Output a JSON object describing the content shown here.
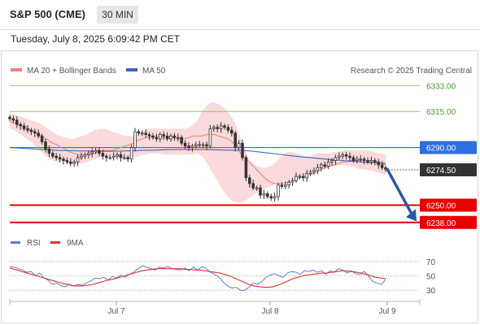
{
  "header": {
    "title": "S&P 500 (CME)",
    "interval": "30 MIN",
    "datetime": "Tuesday, July 8, 2025 6:09:42 PM CET"
  },
  "legend": {
    "ma20_label": "MA 20 + Bollinger Bands",
    "ma50_label": "MA 50",
    "attribution": "Research © 2025 Trading Central",
    "rsi_label": "RSI",
    "rsi_ma_label": "9MA"
  },
  "colors": {
    "ma20": "#f08080",
    "band": "#fadadb",
    "ma50": "#3b63b8",
    "up": "#ffffff",
    "down": "#333333",
    "green_level": "#8dc56a",
    "blue_level": "#2e6fe0",
    "red_level": "#e60000",
    "arrow": "#2b57a5",
    "rsi": "#5b7fd6",
    "rsi_ma": "#e03030"
  },
  "chart_data": [
    {
      "type": "candlestick",
      "title": "S&P 500 (CME)",
      "timeframe": "30 MIN",
      "x_labels": [
        "Jul 7",
        "Jul 8",
        "Jul 9"
      ],
      "ylim": [
        6230,
        6345
      ],
      "levels": [
        {
          "value": 6333.0,
          "label": "6333.00",
          "style": "green"
        },
        {
          "value": 6315.0,
          "label": "6315.00",
          "style": "green"
        },
        {
          "value": 6290.0,
          "label": "6290.00",
          "style": "blue"
        },
        {
          "value": 6250.0,
          "label": "6250.00",
          "style": "red"
        },
        {
          "value": 6238.0,
          "label": "6238.00",
          "style": "red"
        }
      ],
      "current_price": {
        "value": 6274.5,
        "label": "6274.50"
      },
      "forecast_arrow": {
        "from": 6275,
        "to": 6240,
        "direction": "down"
      },
      "closes": [
        6310,
        6309,
        6306,
        6305,
        6303,
        6302,
        6301,
        6300,
        6298,
        6294,
        6289,
        6286,
        6284,
        6283,
        6282,
        6281,
        6280,
        6279,
        6280,
        6283,
        6284,
        6285,
        6286,
        6287,
        6288,
        6286,
        6284,
        6283,
        6283,
        6284,
        6285,
        6283,
        6283,
        6282,
        6290,
        6301,
        6300,
        6300,
        6299,
        6298,
        6297,
        6296,
        6299,
        6298,
        6296,
        6298,
        6297,
        6297,
        6293,
        6291,
        6290,
        6291,
        6292,
        6292,
        6292,
        6291,
        6303,
        6304,
        6303,
        6305,
        6304,
        6302,
        6300,
        6290,
        6293,
        6283,
        6269,
        6265,
        6262,
        6262,
        6257,
        6258,
        6256,
        6255,
        6256,
        6264,
        6263,
        6264,
        6266,
        6267,
        6270,
        6270,
        6269,
        6272,
        6273,
        6274,
        6276,
        6278,
        6277,
        6280,
        6281,
        6283,
        6284,
        6285,
        6284,
        6283,
        6281,
        6282,
        6282,
        6281,
        6280,
        6281,
        6280,
        6278,
        6276,
        6275
      ],
      "ma20": [
        6308,
        6307,
        6306,
        6305,
        6304,
        6302,
        6301,
        6299,
        6297,
        6295,
        6293,
        6292,
        6290,
        6289,
        6287,
        6286,
        6285,
        6285,
        6285,
        6285,
        6286,
        6287,
        6288,
        6288,
        6288,
        6289,
        6290,
        6291,
        6292,
        6293,
        6295,
        6296,
        6297,
        6297,
        6298,
        6298,
        6297,
        6297,
        6297,
        6296,
        6296,
        6296,
        6297,
        6298,
        6298,
        6298,
        6299,
        6299,
        6299,
        6298,
        6297,
        6296,
        6294,
        6291,
        6286,
        6283,
        6280,
        6277,
        6274,
        6271,
        6268,
        6266,
        6265,
        6265,
        6265,
        6266,
        6267,
        6268,
        6269,
        6270,
        6271,
        6272,
        6273,
        6275,
        6276,
        6277,
        6278,
        6279,
        6280,
        6280,
        6281,
        6281,
        6281,
        6281,
        6281,
        6281,
        6280,
        6279,
        6278
      ],
      "bb_upper": [
        6314,
        6313,
        6312,
        6311,
        6310,
        6309,
        6308,
        6307,
        6305,
        6303,
        6301,
        6299,
        6298,
        6297,
        6296,
        6296,
        6297,
        6298,
        6299,
        6301,
        6302,
        6303,
        6303,
        6302,
        6301,
        6300,
        6299,
        6298,
        6298,
        6298,
        6299,
        6301,
        6303,
        6303,
        6303,
        6303,
        6303,
        6303,
        6303,
        6303,
        6303,
        6303,
        6304,
        6306,
        6309,
        6315,
        6319,
        6321,
        6321,
        6320,
        6318,
        6315,
        6311,
        6305,
        6297,
        6289,
        6282,
        6279,
        6277,
        6276,
        6276,
        6277,
        6279,
        6282,
        6285,
        6287,
        6287,
        6286,
        6285,
        6284,
        6284,
        6285,
        6286,
        6286,
        6286,
        6286,
        6287,
        6287,
        6288,
        6288,
        6288,
        6288,
        6288,
        6288,
        6288,
        6287,
        6286,
        6286,
        6285
      ],
      "bb_lower": [
        6303,
        6302,
        6300,
        6298,
        6296,
        6294,
        6291,
        6288,
        6285,
        6283,
        6281,
        6280,
        6280,
        6280,
        6279,
        6279,
        6279,
        6279,
        6280,
        6281,
        6282,
        6283,
        6284,
        6284,
        6284,
        6283,
        6283,
        6282,
        6282,
        6283,
        6284,
        6285,
        6285,
        6286,
        6286,
        6286,
        6285,
        6285,
        6285,
        6285,
        6285,
        6285,
        6285,
        6285,
        6286,
        6284,
        6280,
        6275,
        6270,
        6265,
        6260,
        6256,
        6253,
        6252,
        6252,
        6253,
        6255,
        6257,
        6259,
        6260,
        6262,
        6263,
        6264,
        6265,
        6266,
        6267,
        6268,
        6269,
        6270,
        6271,
        6272,
        6273,
        6274,
        6275,
        6276,
        6277,
        6277,
        6278,
        6278,
        6277,
        6277,
        6276,
        6275,
        6275,
        6274,
        6274,
        6273,
        6272,
        6271
      ],
      "ma50": [
        6290,
        6289.5,
        6289,
        6288.5,
        6288,
        6287.8,
        6287.6,
        6287.5,
        6287.4,
        6287.5,
        6287.7,
        6288,
        6288.2,
        6288.5,
        6288.7,
        6288.7,
        6288.6,
        6288.4,
        6288.2,
        6288,
        6287.5,
        6286.5,
        6285.5,
        6284.5,
        6283.5,
        6282.8,
        6282,
        6281.3,
        6280.6,
        6280,
        6279.5,
        6279
      ],
      "x_positions": {
        "candles": {
          "start": 12,
          "end": 474
        },
        "ma20": {
          "start": 12,
          "end": 474
        },
        "ma50": {
          "start": 12,
          "end": 474
        }
      }
    },
    {
      "type": "line",
      "title": "RSI",
      "ylim": [
        20,
        80
      ],
      "y_ticks": [
        30,
        50,
        70
      ],
      "series": [
        {
          "name": "RSI",
          "values": [
            63,
            62,
            60,
            58,
            55,
            56,
            50,
            54,
            47,
            44,
            38,
            40,
            36,
            35,
            38,
            36,
            38,
            37,
            40,
            43,
            47,
            46,
            48,
            44,
            49,
            47,
            51,
            48,
            52,
            55,
            60,
            64,
            62,
            60,
            58,
            62,
            61,
            63,
            60,
            59,
            58,
            61,
            57,
            62,
            58,
            63,
            60,
            55,
            52,
            48,
            41,
            36,
            33,
            34,
            30,
            30,
            34,
            40,
            38,
            42,
            48,
            51,
            53,
            50,
            48,
            54,
            56,
            55,
            52,
            57,
            56,
            58,
            55,
            57,
            52,
            57,
            55,
            60,
            58,
            54,
            57,
            53,
            52,
            56,
            50,
            42,
            40,
            38,
            45
          ]
        },
        {
          "name": "9MA",
          "values": [
            61,
            59,
            57,
            55,
            53,
            51,
            49,
            47,
            45,
            43,
            41,
            39,
            38,
            36,
            36,
            36,
            37,
            38,
            40,
            42,
            44,
            45,
            47,
            49,
            51,
            53,
            55,
            57,
            58,
            59,
            60,
            60,
            60,
            60,
            60,
            60,
            59,
            59,
            58,
            58,
            57,
            56,
            55,
            54,
            52,
            50,
            47,
            44,
            41,
            38,
            36,
            35,
            34,
            34,
            35,
            37,
            40,
            43,
            46,
            48,
            50,
            51,
            52,
            53,
            54,
            54,
            55,
            56,
            57,
            57,
            56,
            55,
            54,
            52,
            50,
            48,
            47,
            46
          ]
        }
      ]
    }
  ]
}
